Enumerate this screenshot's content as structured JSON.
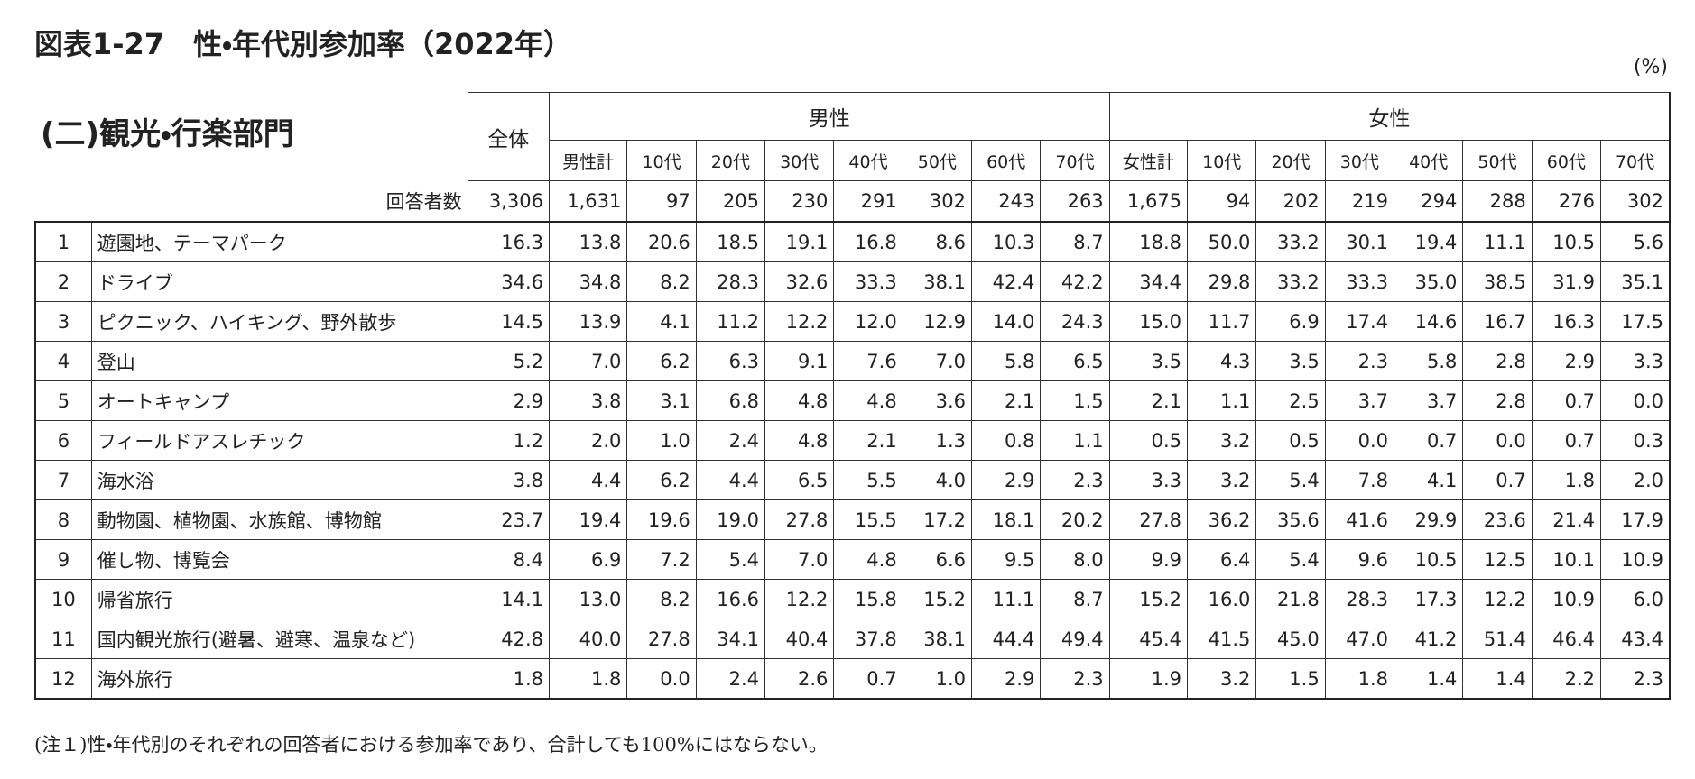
{
  "title": "図表1-27　性・年代別参加率（2022年）",
  "unit": "(%)",
  "subtitle": "(二)観光・行楽部門",
  "table": {
    "header": {
      "total": "全体",
      "groups": [
        {
          "name": "男性",
          "columns": [
            "男性計",
            "10代",
            "20代",
            "30代",
            "40代",
            "50代",
            "60代",
            "70代"
          ]
        },
        {
          "name": "女性",
          "columns": [
            "女性計",
            "10代",
            "20代",
            "30代",
            "40代",
            "50代",
            "60代",
            "70代"
          ]
        }
      ]
    },
    "respondents": {
      "label": "回答者数",
      "values": [
        "3,306",
        "1,631",
        "97",
        "205",
        "230",
        "291",
        "302",
        "243",
        "263",
        "1,675",
        "94",
        "202",
        "219",
        "294",
        "288",
        "276",
        "302"
      ]
    },
    "rows": [
      {
        "no": "1",
        "item": "遊園地、テーマパーク",
        "values": [
          "16.3",
          "13.8",
          "20.6",
          "18.5",
          "19.1",
          "16.8",
          "8.6",
          "10.3",
          "8.7",
          "18.8",
          "50.0",
          "33.2",
          "30.1",
          "19.4",
          "11.1",
          "10.5",
          "5.6"
        ]
      },
      {
        "no": "2",
        "item": "ドライブ",
        "values": [
          "34.6",
          "34.8",
          "8.2",
          "28.3",
          "32.6",
          "33.3",
          "38.1",
          "42.4",
          "42.2",
          "34.4",
          "29.8",
          "33.2",
          "33.3",
          "35.0",
          "38.5",
          "31.9",
          "35.1"
        ]
      },
      {
        "no": "3",
        "item": "ピクニック、ハイキング、野外散歩",
        "values": [
          "14.5",
          "13.9",
          "4.1",
          "11.2",
          "12.2",
          "12.0",
          "12.9",
          "14.0",
          "24.3",
          "15.0",
          "11.7",
          "6.9",
          "17.4",
          "14.6",
          "16.7",
          "16.3",
          "17.5"
        ]
      },
      {
        "no": "4",
        "item": "登山",
        "values": [
          "5.2",
          "7.0",
          "6.2",
          "6.3",
          "9.1",
          "7.6",
          "7.0",
          "5.8",
          "6.5",
          "3.5",
          "4.3",
          "3.5",
          "2.3",
          "5.8",
          "2.8",
          "2.9",
          "3.3"
        ]
      },
      {
        "no": "5",
        "item": "オートキャンプ",
        "values": [
          "2.9",
          "3.8",
          "3.1",
          "6.8",
          "4.8",
          "4.8",
          "3.6",
          "2.1",
          "1.5",
          "2.1",
          "1.1",
          "2.5",
          "3.7",
          "3.7",
          "2.8",
          "0.7",
          "0.0"
        ]
      },
      {
        "no": "6",
        "item": "フィールドアスレチック",
        "values": [
          "1.2",
          "2.0",
          "1.0",
          "2.4",
          "4.8",
          "2.1",
          "1.3",
          "0.8",
          "1.1",
          "0.5",
          "3.2",
          "0.5",
          "0.0",
          "0.7",
          "0.0",
          "0.7",
          "0.3"
        ]
      },
      {
        "no": "7",
        "item": "海水浴",
        "values": [
          "3.8",
          "4.4",
          "6.2",
          "4.4",
          "6.5",
          "5.5",
          "4.0",
          "2.9",
          "2.3",
          "3.3",
          "3.2",
          "5.4",
          "7.8",
          "4.1",
          "0.7",
          "1.8",
          "2.0"
        ]
      },
      {
        "no": "8",
        "item": "動物園、植物園、水族館、博物館",
        "values": [
          "23.7",
          "19.4",
          "19.6",
          "19.0",
          "27.8",
          "15.5",
          "17.2",
          "18.1",
          "20.2",
          "27.8",
          "36.2",
          "35.6",
          "41.6",
          "29.9",
          "23.6",
          "21.4",
          "17.9"
        ]
      },
      {
        "no": "9",
        "item": "催し物、博覧会",
        "values": [
          "8.4",
          "6.9",
          "7.2",
          "5.4",
          "7.0",
          "4.8",
          "6.6",
          "9.5",
          "8.0",
          "9.9",
          "6.4",
          "5.4",
          "9.6",
          "10.5",
          "12.5",
          "10.1",
          "10.9"
        ]
      },
      {
        "no": "10",
        "item": "帰省旅行",
        "values": [
          "14.1",
          "13.0",
          "8.2",
          "16.6",
          "12.2",
          "15.8",
          "15.2",
          "11.1",
          "8.7",
          "15.2",
          "16.0",
          "21.8",
          "28.3",
          "17.3",
          "12.2",
          "10.9",
          "6.0"
        ]
      },
      {
        "no": "11",
        "item": "国内観光旅行(避暑、避寒、温泉など)",
        "values": [
          "42.8",
          "40.0",
          "27.8",
          "34.1",
          "40.4",
          "37.8",
          "38.1",
          "44.4",
          "49.4",
          "45.4",
          "41.5",
          "45.0",
          "47.0",
          "41.2",
          "51.4",
          "46.4",
          "43.4"
        ]
      },
      {
        "no": "12",
        "item": "海外旅行",
        "values": [
          "1.8",
          "1.8",
          "0.0",
          "2.4",
          "2.6",
          "0.7",
          "1.0",
          "2.9",
          "2.3",
          "1.9",
          "3.2",
          "1.5",
          "1.8",
          "1.4",
          "1.4",
          "2.2",
          "2.3"
        ]
      }
    ]
  },
  "note": "(注１)性・年代別のそれぞれの回答者における参加率であり、合計しても100%にはならない。"
}
